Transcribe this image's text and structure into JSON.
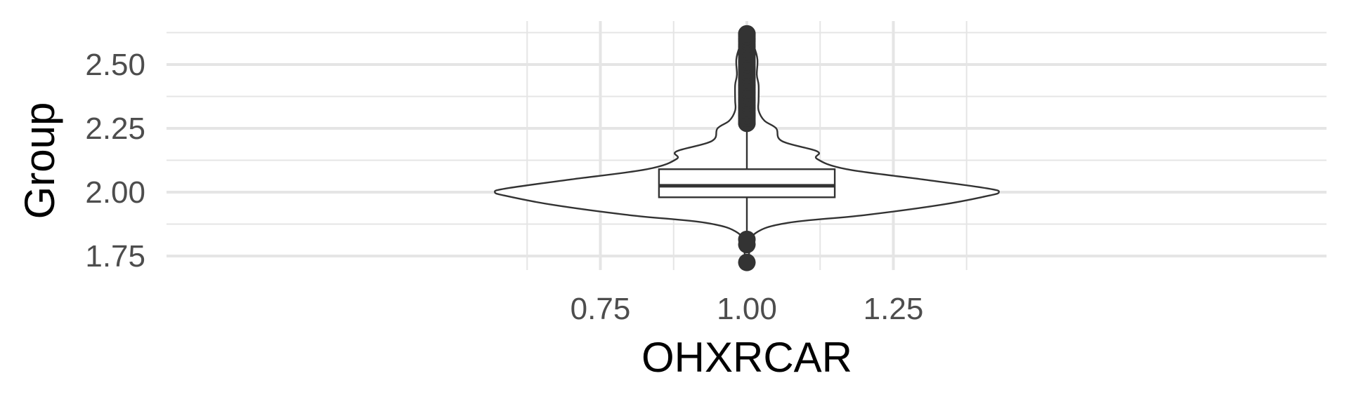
{
  "chart_data": {
    "type": "violin",
    "xlabel": "OHXRCAR",
    "ylabel": "Group",
    "x_ticks": [
      "0.75",
      "1.00",
      "1.25"
    ],
    "x_tick_values": [
      0.75,
      1.0,
      1.25
    ],
    "y_ticks": [
      "1.75",
      "2.00",
      "2.25",
      "2.50"
    ],
    "y_tick_values": [
      1.75,
      2.0,
      2.25,
      2.5
    ],
    "xlim": [
      0.5,
      1.5
    ],
    "ylim": [
      1.7,
      2.65
    ],
    "grid": true,
    "violin": {
      "center_x": 1.0,
      "profile": [
        {
          "y": 1.72,
          "hw": 0.0
        },
        {
          "y": 1.78,
          "hw": 0.006
        },
        {
          "y": 1.84,
          "hw": 0.015
        },
        {
          "y": 1.88,
          "hw": 0.07
        },
        {
          "y": 1.91,
          "hw": 0.2
        },
        {
          "y": 1.95,
          "hw": 0.33
        },
        {
          "y": 1.985,
          "hw": 0.41
        },
        {
          "y": 2.0,
          "hw": 0.43
        },
        {
          "y": 2.015,
          "hw": 0.41
        },
        {
          "y": 2.05,
          "hw": 0.3
        },
        {
          "y": 2.09,
          "hw": 0.17
        },
        {
          "y": 2.13,
          "hw": 0.12
        },
        {
          "y": 2.16,
          "hw": 0.12
        },
        {
          "y": 2.2,
          "hw": 0.06
        },
        {
          "y": 2.25,
          "hw": 0.05
        },
        {
          "y": 2.28,
          "hw": 0.03
        },
        {
          "y": 2.32,
          "hw": 0.02
        },
        {
          "y": 2.36,
          "hw": 0.02
        },
        {
          "y": 2.42,
          "hw": 0.02
        },
        {
          "y": 2.46,
          "hw": 0.017
        },
        {
          "y": 2.52,
          "hw": 0.018
        },
        {
          "y": 2.57,
          "hw": 0.012
        },
        {
          "y": 2.62,
          "hw": 0.0
        }
      ]
    },
    "boxplot": {
      "x": 1.0,
      "half_width": 0.15,
      "q1": 1.98,
      "median": 2.025,
      "q3": 2.09,
      "whisker_low": 1.81,
      "whisker_high": 2.26,
      "outliers": [
        1.725,
        1.795,
        1.815,
        2.27,
        2.3,
        2.33,
        2.36,
        2.39,
        2.42,
        2.45,
        2.48,
        2.51,
        2.54,
        2.57,
        2.6,
        2.62
      ]
    }
  }
}
